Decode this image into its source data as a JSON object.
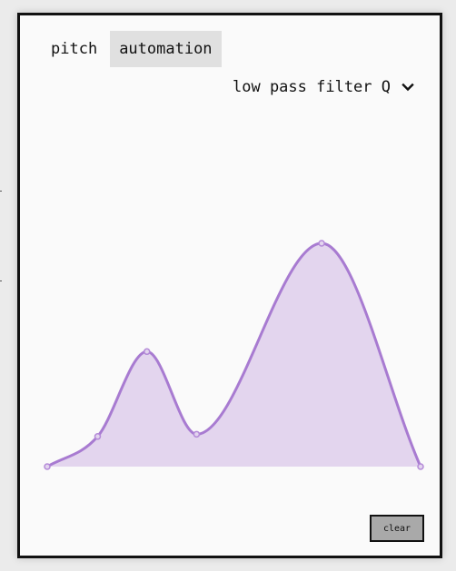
{
  "tabs": [
    {
      "label": "pitch",
      "active": false
    },
    {
      "label": "automation",
      "active": true
    }
  ],
  "parameter": {
    "selected": "low pass filter Q",
    "icon": "chevron-down-icon"
  },
  "clear_label": "clear",
  "colors": {
    "curve": "#a87bd1",
    "fill": "#e3d5ee",
    "point": "#b48ad8"
  },
  "automation_curve": {
    "points": [
      {
        "t": 0.0,
        "v": 0.0
      },
      {
        "t": 0.135,
        "v": 0.135
      },
      {
        "t": 0.267,
        "v": 0.515
      },
      {
        "t": 0.4,
        "v": 0.145
      },
      {
        "t": 0.735,
        "v": 1.0
      },
      {
        "t": 1.0,
        "v": 0.0
      }
    ]
  }
}
